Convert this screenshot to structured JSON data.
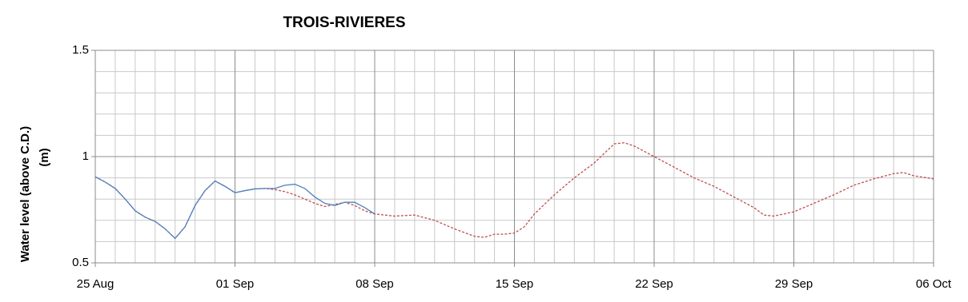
{
  "chart_data": {
    "type": "line",
    "title": "TROIS-RIVIERES",
    "y_label": [
      "Water level (above C.D.)",
      "(m)"
    ],
    "xlim": [
      0,
      42
    ],
    "xticks": [
      {
        "value": 0,
        "label": "25 Aug"
      },
      {
        "value": 7,
        "label": "01 Sep"
      },
      {
        "value": 14,
        "label": "08 Sep"
      },
      {
        "value": 21,
        "label": "15 Sep"
      },
      {
        "value": 28,
        "label": "22 Sep"
      },
      {
        "value": 35,
        "label": "29 Sep"
      },
      {
        "value": 42,
        "label": "06 Oct"
      }
    ],
    "ylim": [
      0.5,
      1.5
    ],
    "yticks": [
      0.5,
      1,
      1.5
    ],
    "grid": true,
    "series": [
      {
        "color": "#4f81bd",
        "dash": false,
        "x": [
          0,
          0.5,
          1,
          1.5,
          2,
          2.5,
          3,
          3.5,
          4,
          4.5,
          5,
          5.5,
          6,
          6.5,
          7,
          7.5,
          8,
          8.5,
          9,
          9.5,
          10,
          10.5,
          11,
          11.5,
          12,
          12.5,
          13,
          13.5,
          14
        ],
        "values": [
          0.905,
          0.88,
          0.85,
          0.8,
          0.745,
          0.715,
          0.695,
          0.66,
          0.615,
          0.67,
          0.77,
          0.84,
          0.885,
          0.86,
          0.83,
          0.84,
          0.848,
          0.85,
          0.85,
          0.865,
          0.87,
          0.85,
          0.81,
          0.78,
          0.77,
          0.785,
          0.785,
          0.76,
          0.73
        ]
      },
      {
        "color": "#c0504d",
        "dash": true,
        "x": [
          0,
          0.5,
          1,
          1.5,
          2,
          2.5,
          3,
          3.5,
          4,
          4.5,
          5,
          5.5,
          6,
          6.5,
          7,
          7.5,
          8,
          8.5,
          9,
          9.5,
          10,
          10.5,
          11,
          11.5,
          12,
          12.5,
          13,
          13.5,
          14,
          15,
          16,
          17,
          18,
          19,
          19.5,
          20,
          20.5,
          21,
          21.5,
          22,
          23,
          24,
          25,
          26,
          26.5,
          27,
          28,
          29,
          30,
          31,
          32,
          33,
          33.5,
          34,
          35,
          36,
          37,
          38,
          39,
          40,
          40.5,
          41,
          42
        ],
        "values": [
          0.905,
          0.88,
          0.85,
          0.8,
          0.745,
          0.715,
          0.695,
          0.66,
          0.615,
          0.67,
          0.77,
          0.84,
          0.885,
          0.86,
          0.83,
          0.84,
          0.848,
          0.85,
          0.845,
          0.835,
          0.82,
          0.8,
          0.78,
          0.765,
          0.775,
          0.785,
          0.77,
          0.745,
          0.73,
          0.72,
          0.725,
          0.7,
          0.66,
          0.625,
          0.62,
          0.635,
          0.635,
          0.64,
          0.67,
          0.73,
          0.82,
          0.9,
          0.97,
          1.06,
          1.065,
          1.05,
          1.0,
          0.95,
          0.9,
          0.86,
          0.81,
          0.76,
          0.725,
          0.72,
          0.74,
          0.78,
          0.82,
          0.865,
          0.895,
          0.92,
          0.925,
          0.91,
          0.895
        ]
      }
    ]
  }
}
